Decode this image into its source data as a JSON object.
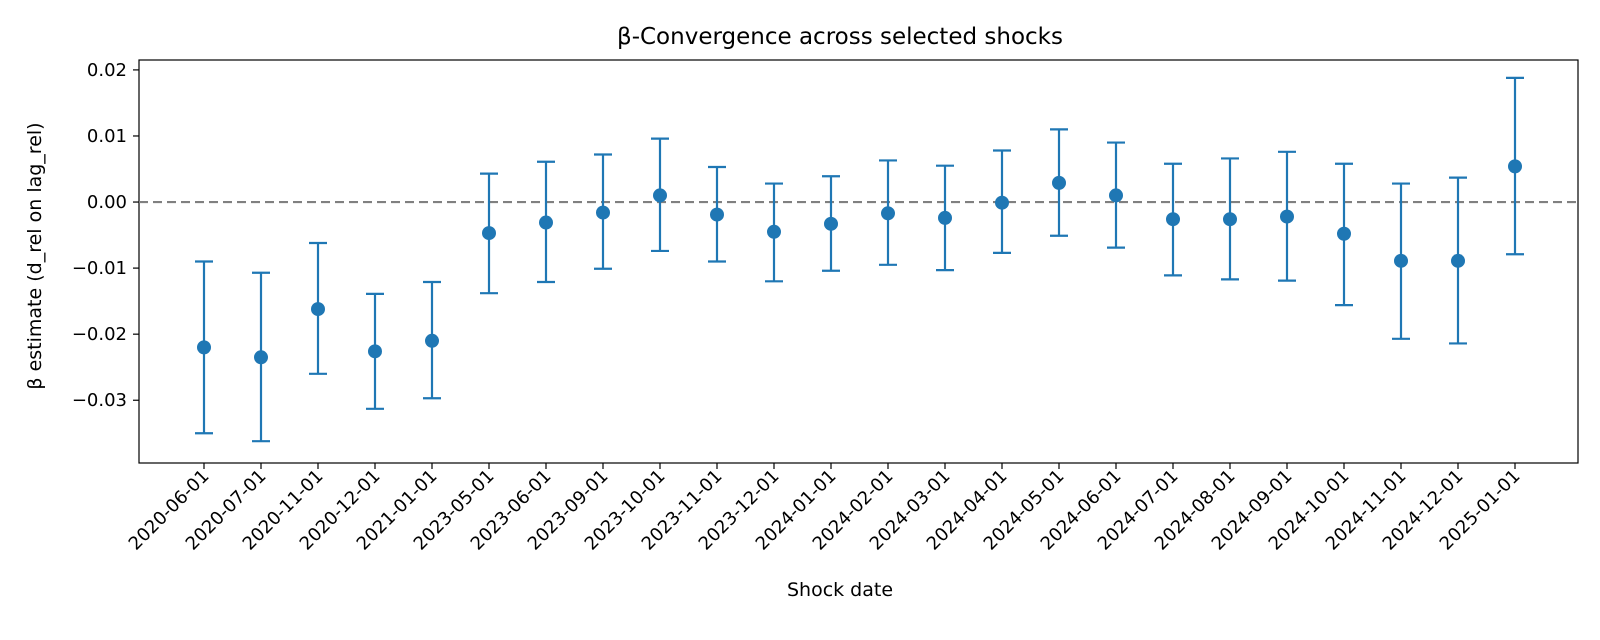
{
  "chart_data": {
    "type": "scatter",
    "title": "β-Convergence across selected shocks",
    "xlabel": "Shock date",
    "ylabel": "β estimate (d_rel on lag_rel)",
    "ylim": [
      -0.0395,
      0.0215
    ],
    "yticks": [
      0.02,
      0.01,
      0.0,
      -0.01,
      -0.02,
      -0.03
    ],
    "ytick_labels": [
      "0.02",
      "0.01",
      "0.00",
      "−0.01",
      "−0.02",
      "−0.03"
    ],
    "reference_line": {
      "y": 0.0,
      "style": "dashed",
      "color": "#808080"
    },
    "grid": false,
    "marker_color": "#1f77b4",
    "categories": [
      "2020-06-01",
      "2020-07-01",
      "2020-11-01",
      "2020-12-01",
      "2021-01-01",
      "2023-05-01",
      "2023-06-01",
      "2023-09-01",
      "2023-10-01",
      "2023-11-01",
      "2023-12-01",
      "2024-01-01",
      "2024-02-01",
      "2024-03-01",
      "2024-04-01",
      "2024-05-01",
      "2024-06-01",
      "2024-07-01",
      "2024-08-01",
      "2024-09-01",
      "2024-10-01",
      "2024-11-01",
      "2024-12-01",
      "2025-01-01"
    ],
    "values": [
      -0.022,
      -0.0235,
      -0.0162,
      -0.0226,
      -0.021,
      -0.0047,
      -0.0031,
      -0.0016,
      0.001,
      -0.0019,
      -0.0045,
      -0.0033,
      -0.0017,
      -0.0024,
      -0.0001,
      0.0029,
      0.001,
      -0.0026,
      -0.0026,
      -0.0022,
      -0.0048,
      -0.0089,
      -0.0089,
      0.0054
    ],
    "lower": [
      -0.035,
      -0.0362,
      -0.026,
      -0.0313,
      -0.0297,
      -0.0138,
      -0.0121,
      -0.0101,
      -0.0074,
      -0.009,
      -0.012,
      -0.0104,
      -0.0095,
      -0.0103,
      -0.0077,
      -0.0051,
      -0.0069,
      -0.0111,
      -0.0117,
      -0.0119,
      -0.0156,
      -0.0207,
      -0.0214,
      -0.0079
    ],
    "upper": [
      -0.009,
      -0.0107,
      -0.0062,
      -0.0139,
      -0.0121,
      0.0043,
      0.0061,
      0.0072,
      0.0096,
      0.0053,
      0.0028,
      0.0039,
      0.0063,
      0.0055,
      0.0078,
      0.011,
      0.009,
      0.0058,
      0.0066,
      0.0076,
      0.0058,
      0.0028,
      0.0037,
      0.0188
    ]
  }
}
